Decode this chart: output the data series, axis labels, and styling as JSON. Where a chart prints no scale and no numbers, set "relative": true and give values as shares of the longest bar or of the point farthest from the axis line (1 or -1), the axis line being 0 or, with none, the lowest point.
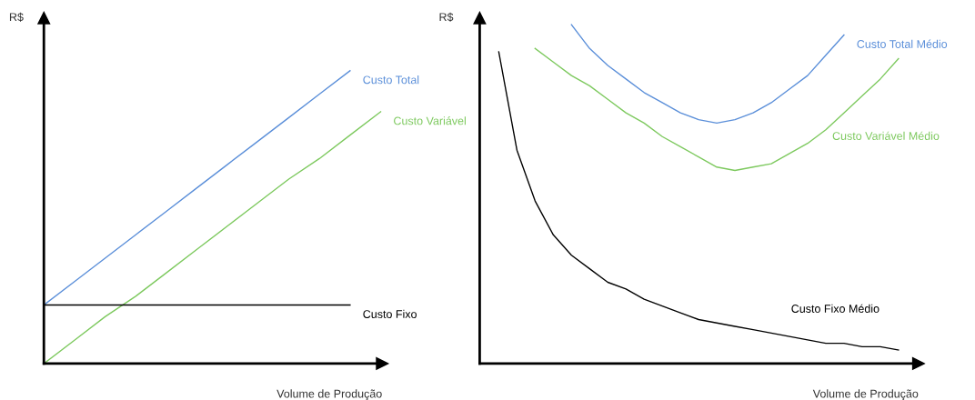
{
  "chart_data": [
    {
      "type": "line",
      "relative": true,
      "ylabel": "R$",
      "xlabel": "Volume de Produção",
      "legend": false,
      "marker": "none",
      "line_style": "solid",
      "categories": [
        null,
        null,
        null,
        null,
        null,
        null,
        null,
        null,
        null,
        null,
        null,
        null
      ],
      "series": [
        {
          "name": "Custo Total",
          "color": "#5b8fd9",
          "values": [
            0.2,
            0.28,
            0.36,
            0.44,
            0.52,
            0.6,
            0.68,
            0.76,
            0.84,
            0.92,
            1.0,
            null
          ]
        },
        {
          "name": "Custo Variável",
          "color": "#7dc95e",
          "values": [
            0,
            0.08,
            0.16,
            0.23,
            0.31,
            0.39,
            0.47,
            0.55,
            0.63,
            0.7,
            0.78,
            0.86
          ]
        },
        {
          "name": "Custo Fixo",
          "color": "#000000",
          "values": [
            0.2,
            0.2,
            0.2,
            0.2,
            0.2,
            0.2,
            0.2,
            0.2,
            0.2,
            0.2,
            0.2,
            null
          ]
        }
      ]
    },
    {
      "type": "line",
      "relative": true,
      "ylabel": "R$",
      "xlabel": "Volume de Produção",
      "legend": false,
      "marker": "none",
      "line_style": "solid",
      "categories": [
        null,
        null,
        null,
        null,
        null,
        null,
        null,
        null,
        null,
        null,
        null,
        null,
        null,
        null,
        null,
        null,
        null,
        null,
        null,
        null,
        null,
        null,
        null
      ],
      "series": [
        {
          "name": "Custo Total Médio",
          "color": "#5b8fd9",
          "values": [
            null,
            null,
            null,
            null,
            1.0,
            0.93,
            0.88,
            0.84,
            0.8,
            0.77,
            0.74,
            0.72,
            0.71,
            0.72,
            0.74,
            0.77,
            0.81,
            0.85,
            0.91,
            0.97,
            null,
            null,
            null
          ]
        },
        {
          "name": "Custo Variável Médio",
          "color": "#7dc95e",
          "values": [
            null,
            null,
            0.93,
            0.89,
            0.85,
            0.82,
            0.78,
            0.74,
            0.71,
            0.67,
            0.64,
            0.61,
            0.58,
            0.57,
            0.58,
            0.59,
            0.62,
            0.65,
            0.69,
            0.74,
            0.79,
            0.84,
            0.9
          ]
        },
        {
          "name": "Custo Fixo Médio",
          "color": "#000000",
          "values": [
            0.92,
            0.63,
            0.48,
            0.38,
            0.32,
            0.28,
            0.24,
            0.22,
            0.19,
            0.17,
            0.15,
            0.13,
            0.12,
            0.11,
            0.1,
            0.09,
            0.08,
            0.07,
            0.06,
            0.06,
            0.05,
            0.05,
            0.04
          ]
        }
      ]
    }
  ]
}
